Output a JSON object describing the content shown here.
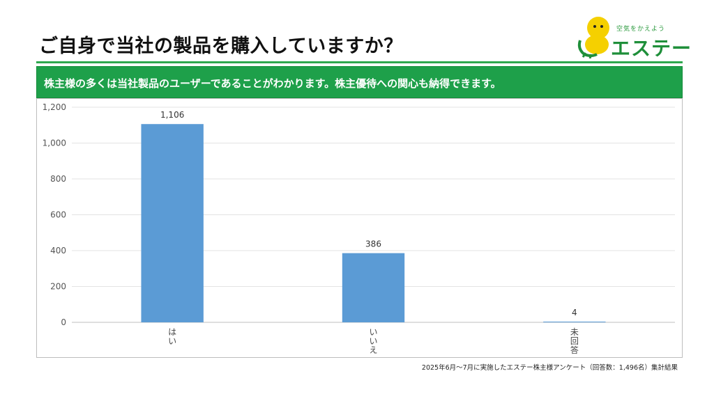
{
  "title": "ご自身で当社の製品を購入していますか？",
  "logo": {
    "tagline": "空気をかえよう",
    "name": "エステー"
  },
  "banner": "株主様の多くは当社製品のユーザーであることがわかります。株主優待への関心も納得できます。",
  "footnote": "2025年6月～7月に実施したエステー株主様アンケート（回答数：1,496名）集計結果",
  "colors": {
    "accent": "#1ea04a",
    "bar": "#5b9bd5"
  },
  "chart_data": {
    "type": "bar",
    "categories": [
      "はい",
      "いいえ",
      "未回答"
    ],
    "values": [
      1106,
      386,
      4
    ],
    "value_labels": [
      "1,106",
      "386",
      "4"
    ],
    "ylim": [
      0,
      1200
    ],
    "yticks": [
      0,
      200,
      400,
      600,
      800,
      1000,
      1200
    ],
    "ytick_labels": [
      "0",
      "200",
      "400",
      "600",
      "800",
      "1,000",
      "1,200"
    ],
    "grid": true
  }
}
